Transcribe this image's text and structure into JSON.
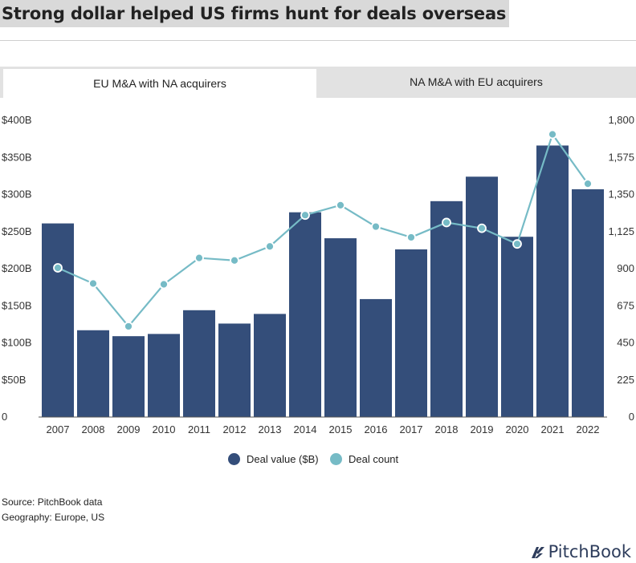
{
  "title": "Strong dollar helped US firms hunt for deals overseas",
  "tabs": [
    {
      "label": "EU M&A with NA acquirers",
      "active": true
    },
    {
      "label": "NA M&A with EU acquirers",
      "active": false
    }
  ],
  "colors": {
    "bar": "#344e7a",
    "line": "#76bbc6",
    "title_bg": "#d9d9d9",
    "tab_bg": "#e2e2e2"
  },
  "chart_data": {
    "type": "bar",
    "categories": [
      "2007",
      "2008",
      "2009",
      "2010",
      "2011",
      "2012",
      "2013",
      "2014",
      "2015",
      "2016",
      "2017",
      "2018",
      "2019",
      "2020",
      "2021",
      "2022"
    ],
    "series": [
      {
        "name": "Deal value ($B)",
        "type": "bar",
        "axis": "left",
        "values": [
          261,
          117,
          109,
          112,
          144,
          126,
          139,
          276,
          241,
          159,
          226,
          291,
          324,
          243,
          366,
          307
        ]
      },
      {
        "name": "Deal count",
        "type": "line",
        "axis": "right",
        "values": [
          905,
          810,
          550,
          805,
          965,
          950,
          1035,
          1225,
          1285,
          1155,
          1090,
          1180,
          1145,
          1050,
          1715,
          1415
        ]
      }
    ],
    "y_left": {
      "min": 0,
      "max": 400,
      "ticks": [
        0,
        50,
        100,
        150,
        200,
        250,
        300,
        350,
        400
      ],
      "tick_labels": [
        "0",
        "$50B",
        "$100B",
        "$150B",
        "$200B",
        "$250B",
        "$300B",
        "$350B",
        "$400B"
      ]
    },
    "y_right": {
      "min": 0,
      "max": 1800,
      "ticks": [
        0,
        225,
        450,
        675,
        900,
        1125,
        1350,
        1575,
        1800
      ],
      "tick_labels": [
        "0",
        "225",
        "450",
        "675",
        "900",
        "1,125",
        "1,350",
        "1,575",
        "1,800"
      ]
    },
    "legend_position": "bottom-center",
    "grid": false
  },
  "legend": [
    {
      "label": "Deal value ($B)",
      "color": "#344e7a"
    },
    {
      "label": "Deal count",
      "color": "#76bbc6"
    }
  ],
  "source_lines": [
    "Source: PitchBook data",
    "Geography: Europe, US"
  ],
  "logo_text": "PitchBook"
}
